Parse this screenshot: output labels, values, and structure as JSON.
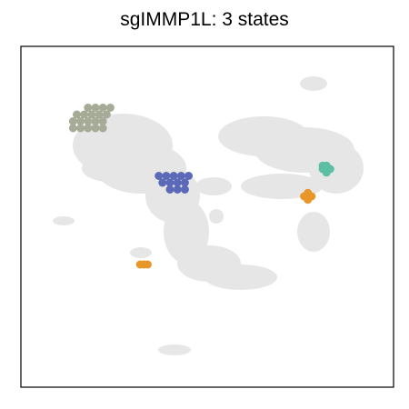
{
  "chart_data": {
    "type": "scatter",
    "title": "sgIMMP1L: 3 states",
    "xlabel": "",
    "ylabel": "",
    "grid": false,
    "axis_ticks": false,
    "background_color": "#e3e3e3",
    "frame_color": "#000000",
    "series": [
      {
        "color": "#a5ab97",
        "points": [
          [
            0.14,
            0.78
          ],
          [
            0.16,
            0.78
          ],
          [
            0.18,
            0.78
          ],
          [
            0.2,
            0.78
          ],
          [
            0.22,
            0.78
          ],
          [
            0.15,
            0.8
          ],
          [
            0.17,
            0.8
          ],
          [
            0.19,
            0.8
          ],
          [
            0.21,
            0.8
          ],
          [
            0.23,
            0.8
          ],
          [
            0.18,
            0.82
          ],
          [
            0.2,
            0.82
          ],
          [
            0.22,
            0.82
          ],
          [
            0.24,
            0.82
          ],
          [
            0.14,
            0.76
          ],
          [
            0.16,
            0.76
          ],
          [
            0.18,
            0.76
          ],
          [
            0.2,
            0.76
          ],
          [
            0.22,
            0.76
          ]
        ]
      },
      {
        "color": "#5b69b8",
        "points": [
          [
            0.37,
            0.62
          ],
          [
            0.39,
            0.62
          ],
          [
            0.41,
            0.62
          ],
          [
            0.43,
            0.62
          ],
          [
            0.45,
            0.62
          ],
          [
            0.38,
            0.6
          ],
          [
            0.4,
            0.6
          ],
          [
            0.42,
            0.6
          ],
          [
            0.44,
            0.6
          ],
          [
            0.4,
            0.58
          ],
          [
            0.42,
            0.58
          ],
          [
            0.44,
            0.58
          ]
        ]
      },
      {
        "color": "#5cbfa3",
        "points": [
          [
            0.81,
            0.65
          ],
          [
            0.82,
            0.65
          ],
          [
            0.83,
            0.64
          ],
          [
            0.81,
            0.64
          ],
          [
            0.82,
            0.63
          ]
        ]
      },
      {
        "color": "#e8962a",
        "points": [
          [
            0.76,
            0.56
          ],
          [
            0.77,
            0.55
          ],
          [
            0.78,
            0.56
          ],
          [
            0.77,
            0.57
          ],
          [
            0.32,
            0.36
          ],
          [
            0.33,
            0.36
          ],
          [
            0.34,
            0.36
          ]
        ]
      }
    ]
  }
}
